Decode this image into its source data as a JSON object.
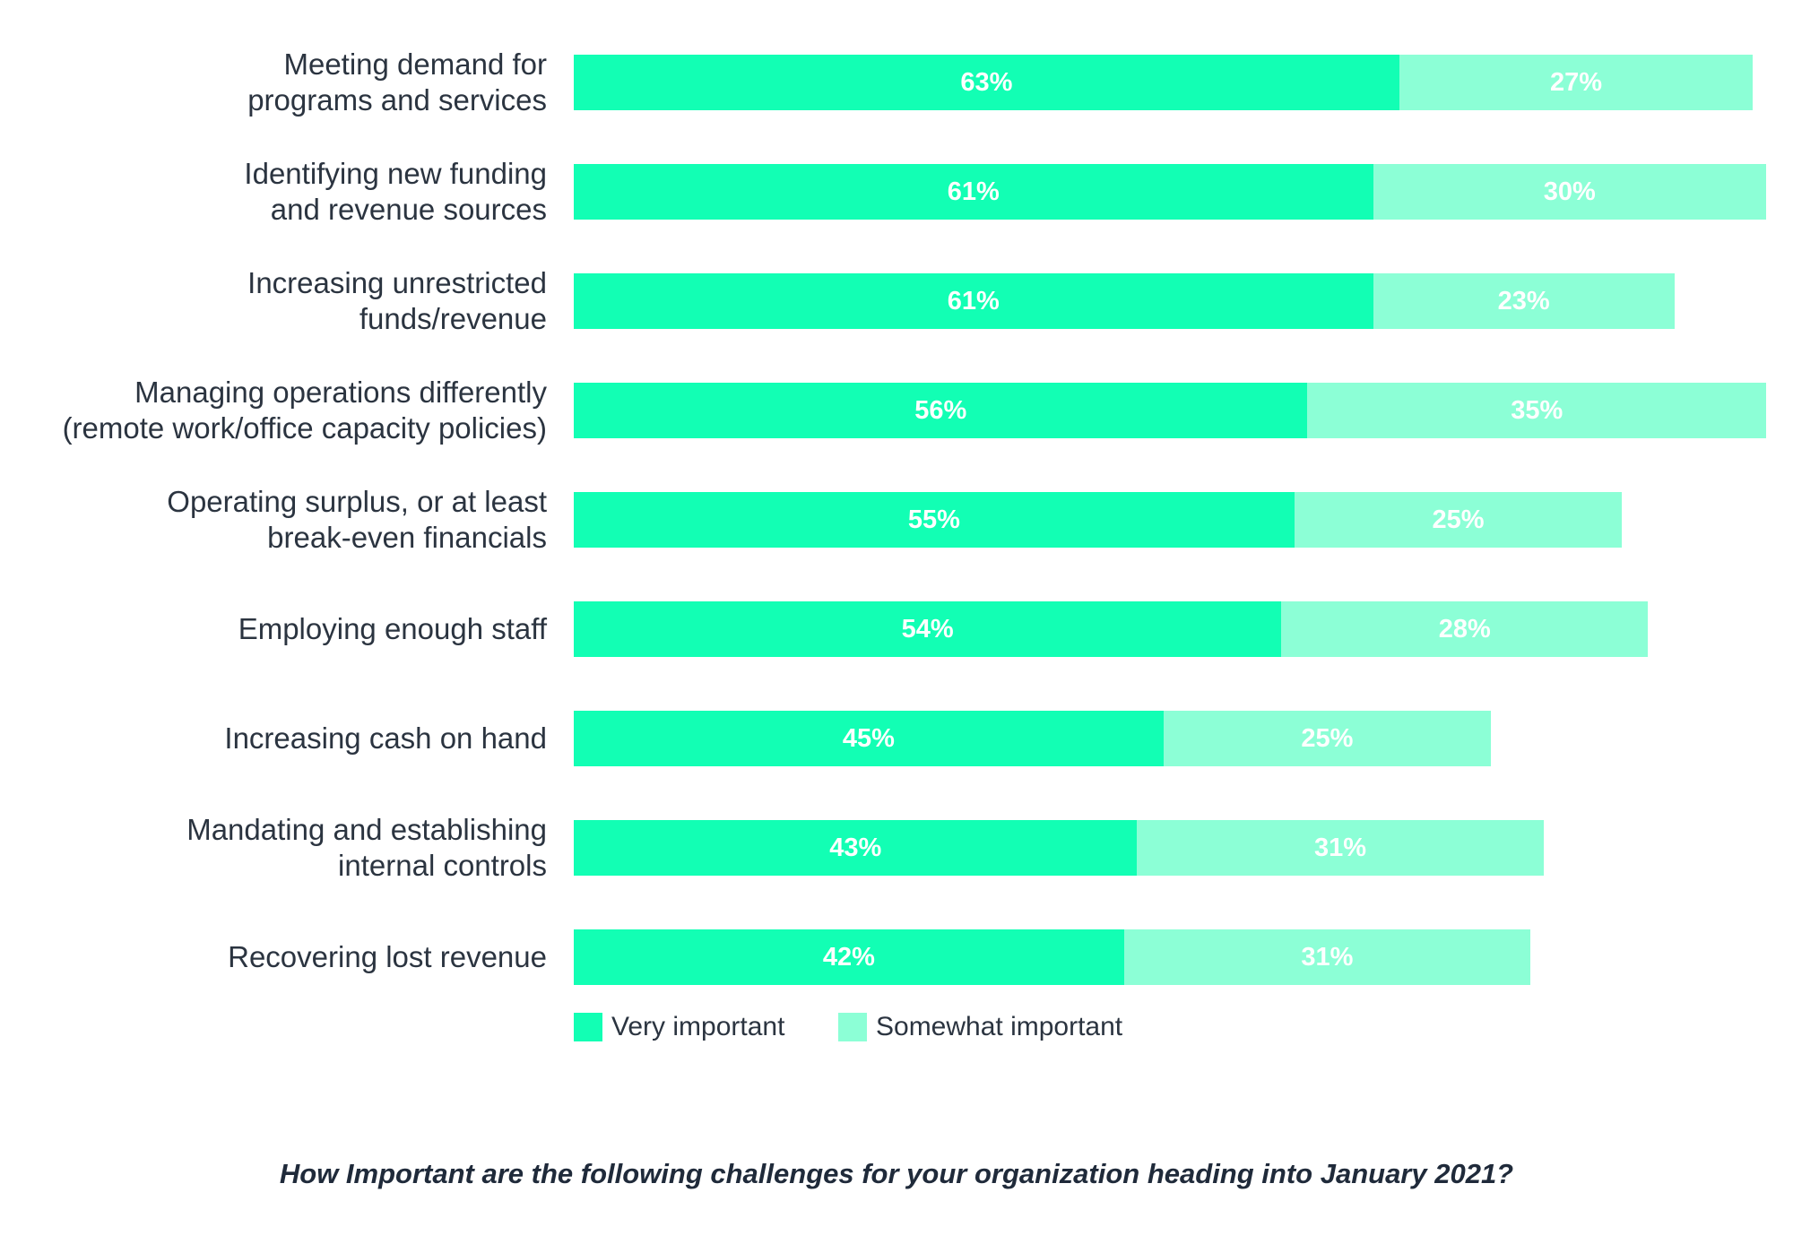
{
  "chart_data": {
    "type": "bar",
    "orientation": "horizontal",
    "stacked": true,
    "categories": [
      [
        "Meeting demand for",
        "programs and services"
      ],
      [
        "Identifying new funding",
        "and revenue sources"
      ],
      [
        "Increasing unrestricted",
        "funds/revenue"
      ],
      [
        "Managing operations differently",
        "(remote work/office capacity policies)"
      ],
      [
        "Operating surplus, or at least",
        "break-even financials"
      ],
      [
        "Employing enough staff"
      ],
      [
        "Increasing cash on hand"
      ],
      [
        "Mandating and establishing",
        "internal controls"
      ],
      [
        "Recovering lost revenue"
      ]
    ],
    "series": [
      {
        "name": "Very important",
        "color": "#12ffb4",
        "values": [
          63,
          61,
          61,
          56,
          55,
          54,
          45,
          43,
          42
        ],
        "labels": [
          "63%",
          "61%",
          "61%",
          "56%",
          "55%",
          "54%",
          "45%",
          "43%",
          "42%"
        ]
      },
      {
        "name": "Somewhat important",
        "color": "#8cffd6",
        "values": [
          27,
          30,
          23,
          35,
          25,
          28,
          25,
          31,
          31
        ],
        "labels": [
          "27%",
          "30%",
          "23%",
          "35%",
          "25%",
          "28%",
          "25%",
          "31%",
          "31%"
        ]
      }
    ],
    "xlim": [
      0,
      91
    ],
    "grid": false,
    "legend_position": "bottom-left",
    "caption": "How Important are the following challenges for your organization heading into January 2021?"
  }
}
